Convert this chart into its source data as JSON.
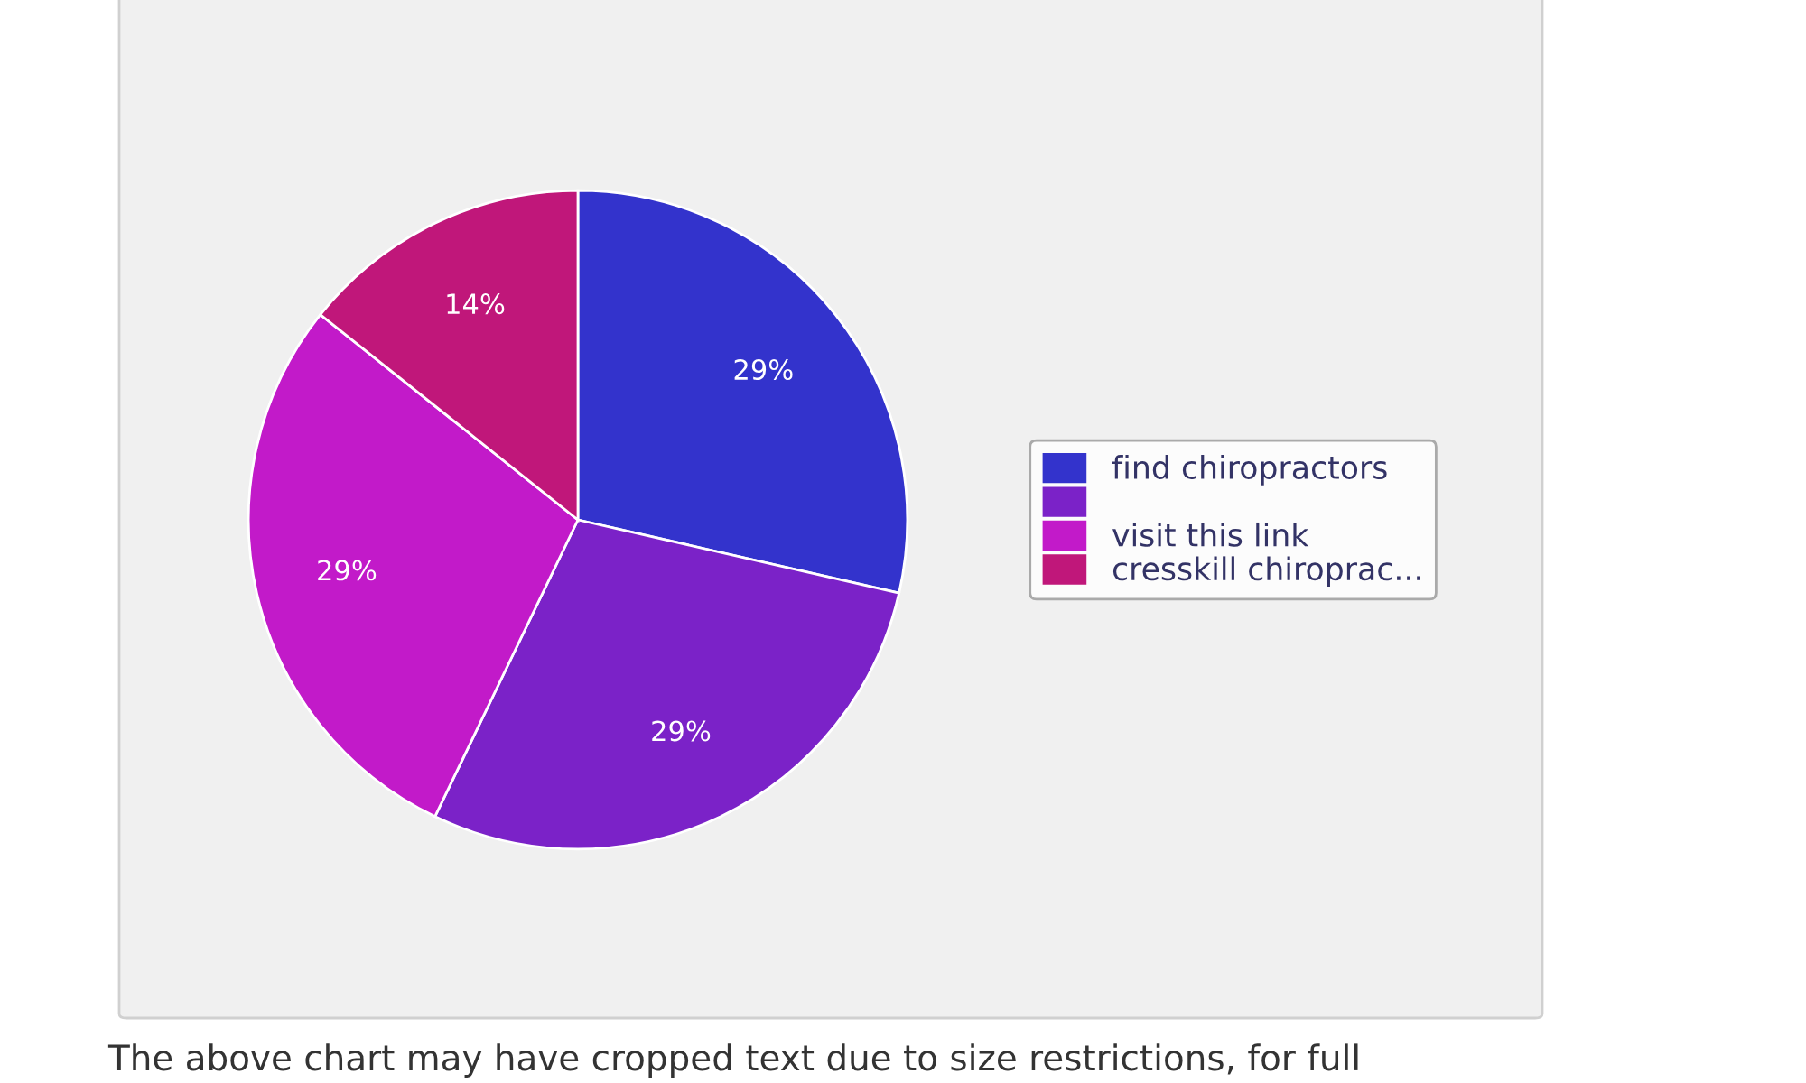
{
  "chart_data": {
    "type": "pie",
    "categories": [
      "find chiropractors",
      null,
      "visit this link",
      "cresskill chiroprac..."
    ],
    "values": [
      28.57,
      28.57,
      28.57,
      14.29
    ],
    "value_labels": [
      "29%",
      "29%",
      "29%",
      "14%"
    ],
    "colors": [
      "#3333cc",
      "#7b22c8",
      "#c21ac9",
      "#c0177a"
    ],
    "legend": "right",
    "annotations": [
      "The above chart may have cropped text due to size restrictions, for full"
    ]
  }
}
